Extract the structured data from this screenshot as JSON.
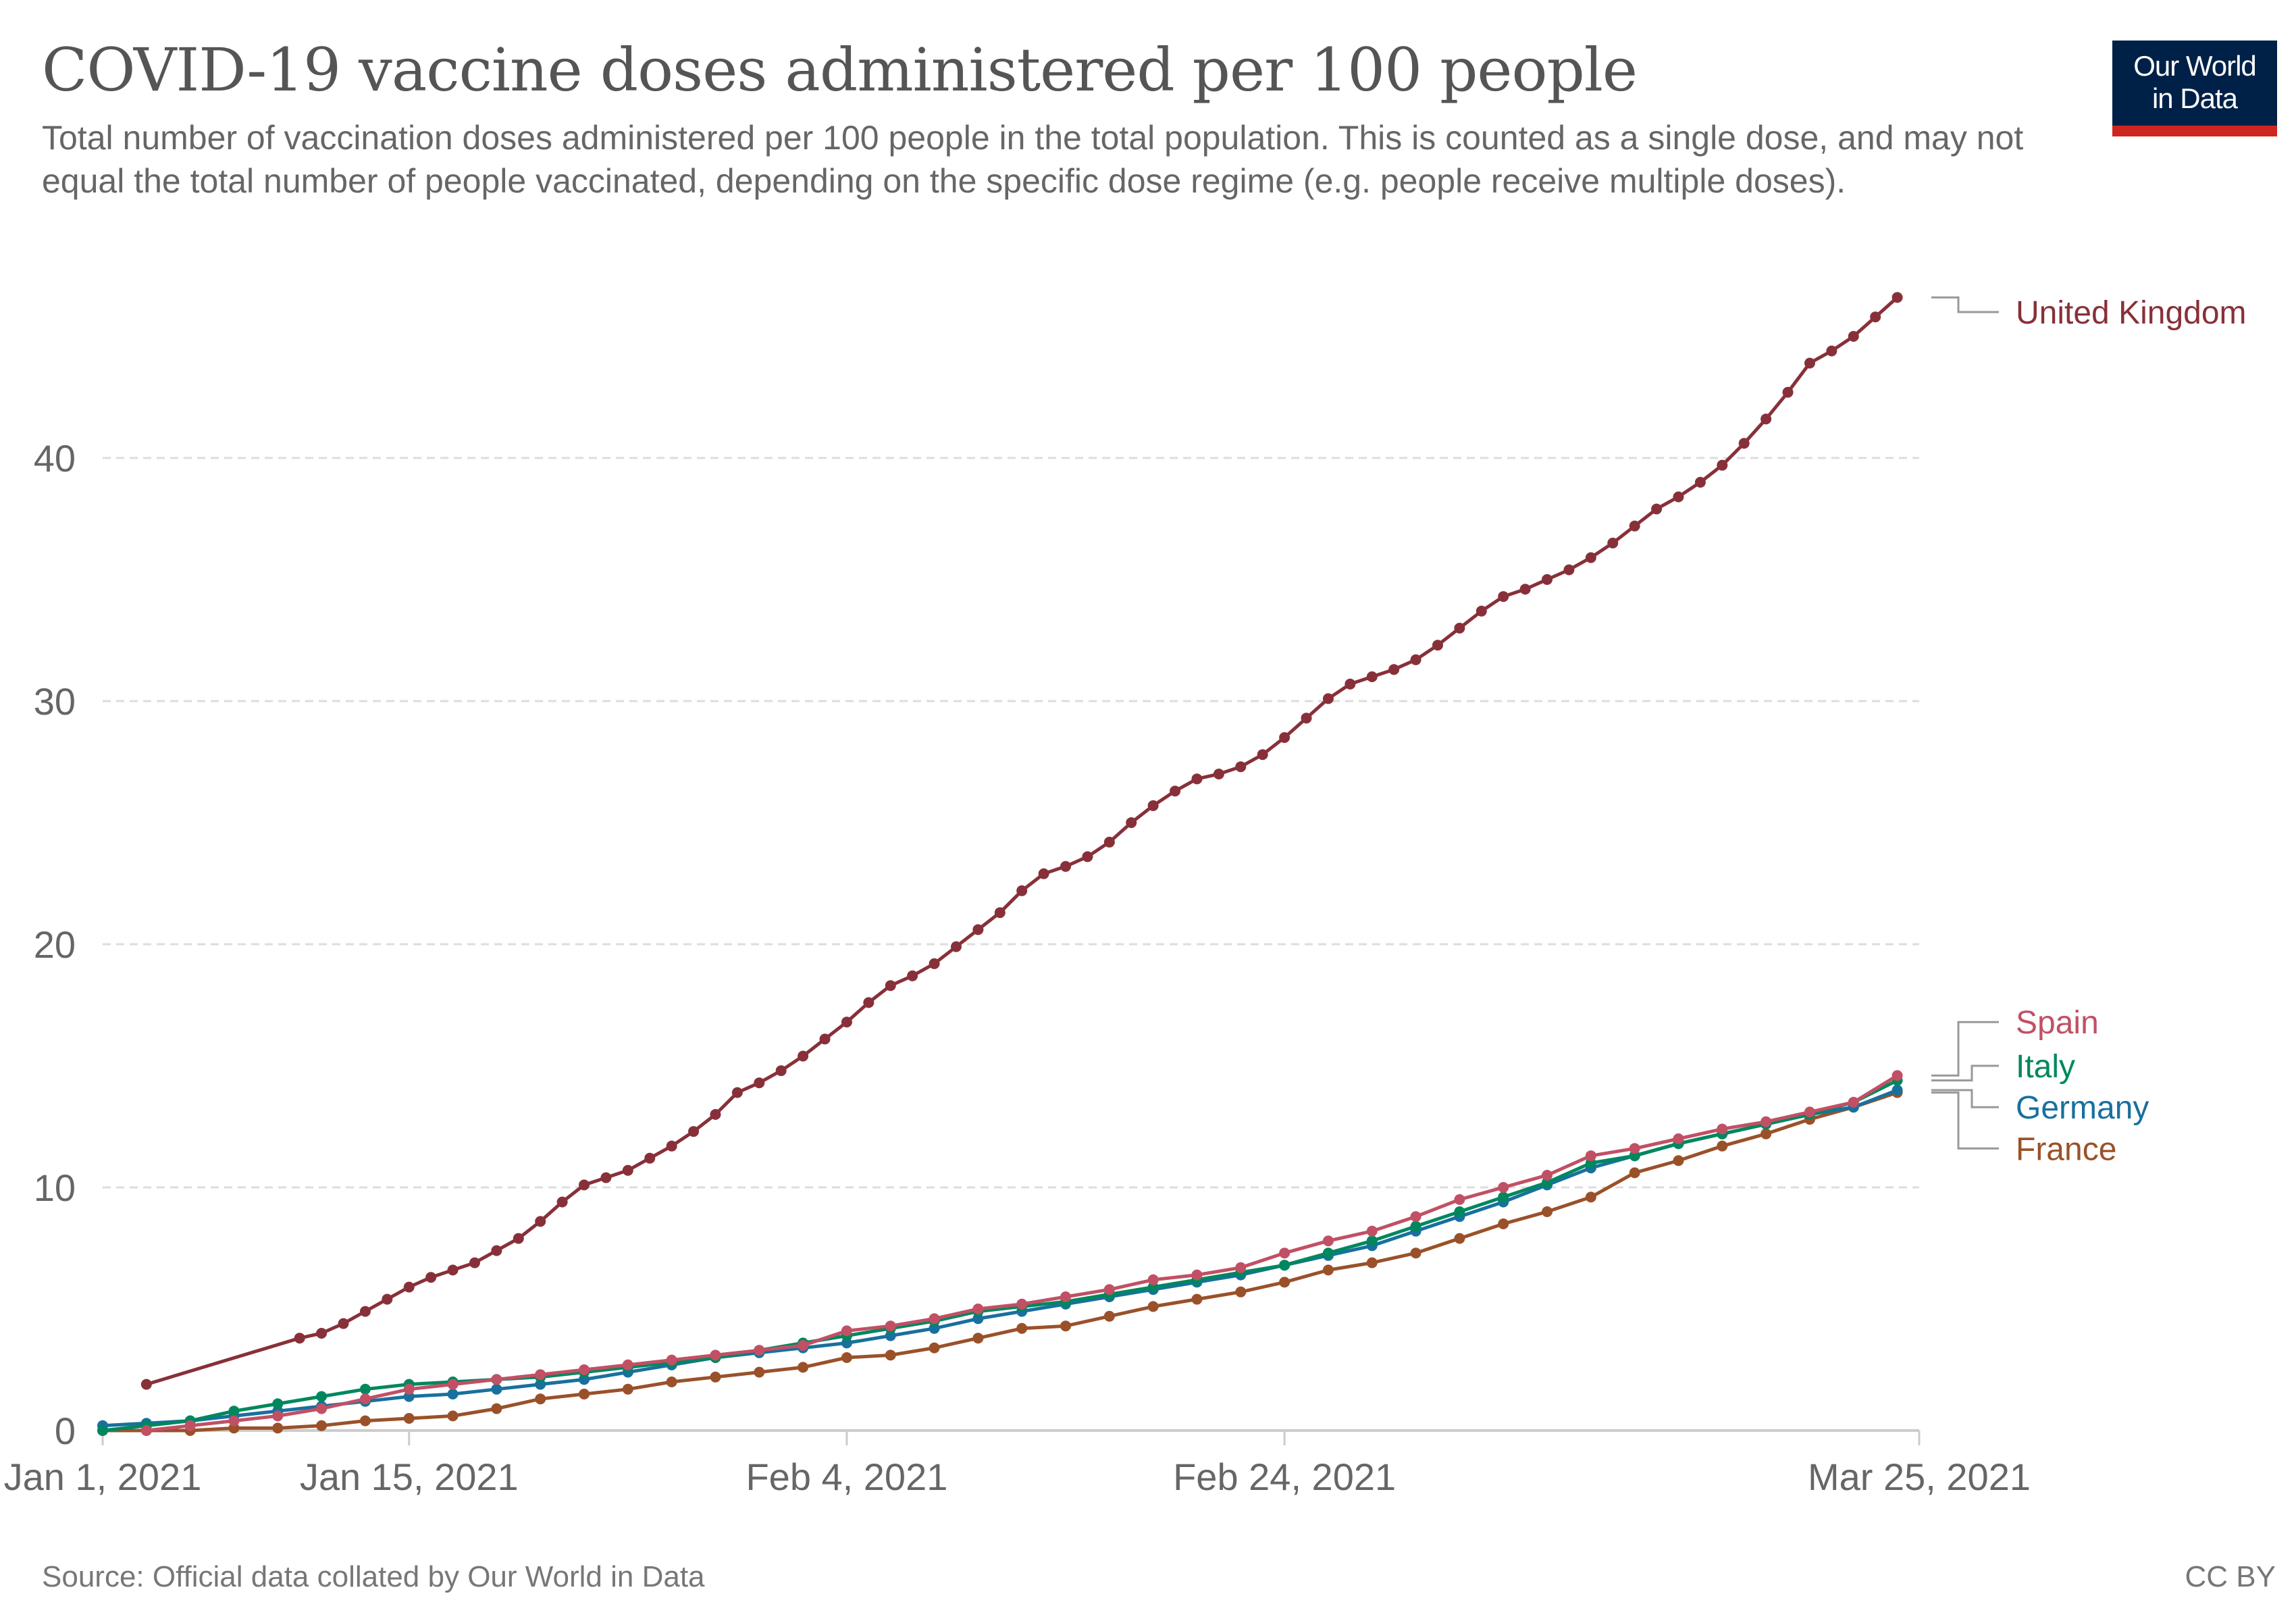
{
  "header": {
    "title": "COVID-19 vaccine doses administered per 100 people",
    "subtitle": "Total number of vaccination doses administered per 100 people in the total population. This is counted as a single dose, and may not equal the total number of people vaccinated, depending on the specific dose regime (e.g. people receive multiple doses).",
    "logo_line1": "Our World",
    "logo_line2": "in Data"
  },
  "footer": {
    "source": "Source: Official data collated by Our World in Data",
    "license": "CC BY"
  },
  "colors": {
    "United Kingdom": "#883039",
    "Spain": "#c15065",
    "Italy": "#00875e",
    "Germany": "#18709e",
    "France": "#9a5129",
    "grid": "#dddddd",
    "logo_bg": "#002147",
    "logo_bar": "#ce261e"
  },
  "chart_data": {
    "type": "line",
    "title": "COVID-19 vaccine doses administered per 100 people",
    "xlabel": "",
    "ylabel": "",
    "x_start": "2021-01-01",
    "x_end": "2021-03-25",
    "x_unit": "days since Jan 1, 2021",
    "xlim": [
      0,
      83
    ],
    "ylim": [
      0,
      47
    ],
    "y_ticks": [
      0,
      10,
      20,
      30,
      40
    ],
    "x_ticks": [
      {
        "day": 0,
        "label": "Jan 1, 2021"
      },
      {
        "day": 14,
        "label": "Jan 15, 2021"
      },
      {
        "day": 34,
        "label": "Feb 4, 2021"
      },
      {
        "day": 54,
        "label": "Feb 24, 2021"
      },
      {
        "day": 83,
        "label": "Mar 25, 2021"
      }
    ],
    "grid": true,
    "legend": "right, labels at line ends",
    "series": [
      {
        "name": "United Kingdom",
        "x": [
          2,
          9,
          10,
          11,
          12,
          13,
          14,
          15,
          16,
          17,
          18,
          19,
          20,
          21,
          22,
          23,
          24,
          25,
          26,
          27,
          28,
          29,
          30,
          31,
          32,
          33,
          34,
          35,
          36,
          37,
          38,
          39,
          40,
          41,
          42,
          43,
          44,
          45,
          46,
          47,
          48,
          49,
          50,
          51,
          52,
          53,
          54,
          55,
          56,
          57,
          58,
          59,
          60,
          61,
          62,
          63,
          64,
          65,
          66,
          67,
          68,
          69,
          70,
          71,
          72,
          73,
          74,
          75,
          76,
          77,
          78,
          79,
          80,
          81,
          82
        ],
        "y": [
          1.9,
          3.8,
          4.0,
          4.4,
          4.9,
          5.4,
          5.9,
          6.3,
          6.6,
          6.9,
          7.4,
          7.9,
          8.6,
          9.4,
          10.1,
          10.4,
          10.7,
          11.2,
          11.7,
          12.3,
          13.0,
          13.9,
          14.3,
          14.8,
          15.4,
          16.1,
          16.8,
          17.6,
          18.3,
          18.7,
          19.2,
          19.9,
          20.6,
          21.3,
          22.2,
          22.9,
          23.2,
          23.6,
          24.2,
          25.0,
          25.7,
          26.3,
          26.8,
          27.0,
          27.3,
          27.8,
          28.5,
          29.3,
          30.1,
          30.7,
          31.0,
          31.3,
          31.7,
          32.3,
          33.0,
          33.7,
          34.3,
          34.6,
          35.0,
          35.4,
          35.9,
          36.5,
          37.2,
          37.9,
          38.4,
          39.0,
          39.7,
          40.6,
          41.6,
          42.7,
          43.9,
          44.4,
          45.0,
          45.8,
          46.6
        ]
      },
      {
        "name": "Spain",
        "x": [
          2,
          4,
          6,
          8,
          10,
          12,
          14,
          16,
          18,
          20,
          22,
          24,
          26,
          28,
          30,
          32,
          34,
          36,
          38,
          40,
          42,
          44,
          46,
          48,
          50,
          52,
          54,
          56,
          58,
          60,
          62,
          64,
          66,
          68,
          70,
          72,
          74,
          76,
          78,
          80,
          82
        ],
        "y": [
          0.0,
          0.2,
          0.4,
          0.6,
          0.9,
          1.3,
          1.7,
          1.9,
          2.1,
          2.3,
          2.5,
          2.7,
          2.9,
          3.1,
          3.3,
          3.5,
          4.1,
          4.3,
          4.6,
          5.0,
          5.2,
          5.5,
          5.8,
          6.2,
          6.4,
          6.7,
          7.3,
          7.8,
          8.2,
          8.8,
          9.5,
          10.0,
          10.5,
          11.3,
          11.6,
          12.0,
          12.4,
          12.7,
          13.1,
          13.5,
          14.6
        ]
      },
      {
        "name": "Italy",
        "x": [
          0,
          2,
          4,
          6,
          8,
          10,
          12,
          14,
          16,
          18,
          20,
          22,
          24,
          26,
          28,
          30,
          32,
          34,
          36,
          38,
          40,
          42,
          44,
          46,
          48,
          50,
          52,
          54,
          56,
          58,
          60,
          62,
          64,
          66,
          68,
          70,
          72,
          74,
          76,
          78,
          80,
          82
        ],
        "y": [
          0.0,
          0.2,
          0.4,
          0.8,
          1.1,
          1.4,
          1.7,
          1.9,
          2.0,
          2.1,
          2.2,
          2.4,
          2.6,
          2.8,
          3.0,
          3.3,
          3.6,
          3.9,
          4.2,
          4.5,
          4.9,
          5.1,
          5.3,
          5.6,
          5.9,
          6.2,
          6.5,
          6.8,
          7.3,
          7.8,
          8.4,
          9.0,
          9.6,
          10.2,
          11.0,
          11.3,
          11.8,
          12.2,
          12.6,
          13.0,
          13.5,
          14.4
        ]
      },
      {
        "name": "Germany",
        "x": [
          0,
          2,
          4,
          6,
          8,
          10,
          12,
          14,
          16,
          18,
          20,
          22,
          24,
          26,
          28,
          30,
          32,
          34,
          36,
          38,
          40,
          42,
          44,
          46,
          48,
          50,
          52,
          54,
          56,
          58,
          60,
          62,
          64,
          66,
          68,
          70,
          72,
          74,
          76,
          78,
          80,
          82
        ],
        "y": [
          0.2,
          0.3,
          0.4,
          0.6,
          0.8,
          1.0,
          1.2,
          1.4,
          1.5,
          1.7,
          1.9,
          2.1,
          2.4,
          2.7,
          3.0,
          3.2,
          3.4,
          3.6,
          3.9,
          4.2,
          4.6,
          4.9,
          5.2,
          5.5,
          5.8,
          6.1,
          6.4,
          6.8,
          7.2,
          7.6,
          8.2,
          8.8,
          9.4,
          10.1,
          10.8,
          11.3,
          11.8,
          12.2,
          12.6,
          13.0,
          13.3,
          14.0
        ]
      },
      {
        "name": "France",
        "x": [
          0,
          2,
          4,
          6,
          8,
          10,
          12,
          14,
          16,
          18,
          20,
          22,
          24,
          26,
          28,
          30,
          32,
          34,
          36,
          38,
          40,
          42,
          44,
          46,
          48,
          50,
          52,
          54,
          56,
          58,
          60,
          62,
          64,
          66,
          68,
          70,
          72,
          74,
          76,
          78,
          80,
          82
        ],
        "y": [
          0.0,
          0.0,
          0.0,
          0.1,
          0.1,
          0.2,
          0.4,
          0.5,
          0.6,
          0.9,
          1.3,
          1.5,
          1.7,
          2.0,
          2.2,
          2.4,
          2.6,
          3.0,
          3.1,
          3.4,
          3.8,
          4.2,
          4.3,
          4.7,
          5.1,
          5.4,
          5.7,
          6.1,
          6.6,
          6.9,
          7.3,
          7.9,
          8.5,
          9.0,
          9.6,
          10.6,
          11.1,
          11.7,
          12.2,
          12.8,
          13.3,
          13.9
        ]
      }
    ],
    "annotations": [
      {
        "series": "United Kingdom",
        "label": "United Kingdom",
        "y_label_value": 46.0
      },
      {
        "series": "Spain",
        "label": "Spain",
        "y_label_value": 16.8
      },
      {
        "series": "Italy",
        "label": "Italy",
        "y_label_value": 15.0
      },
      {
        "series": "Germany",
        "label": "Germany",
        "y_label_value": 13.3
      },
      {
        "series": "France",
        "label": "France",
        "y_label_value": 11.6
      }
    ]
  }
}
